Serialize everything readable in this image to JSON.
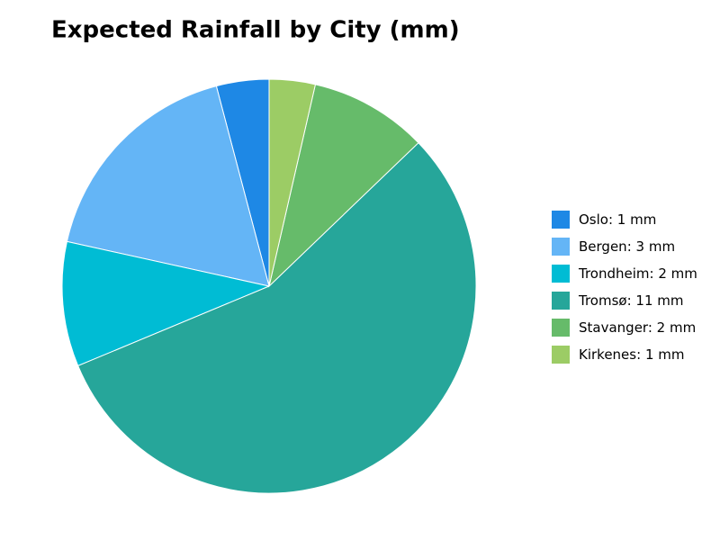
{
  "chart_data": {
    "type": "pie",
    "title": "Expected Rainfall by City (mm)",
    "categories": [
      "Oslo",
      "Bergen",
      "Trondheim",
      "Tromsø",
      "Stavanger",
      "Kirkenes"
    ],
    "values": [
      0.8,
      3.4,
      1.9,
      10.9,
      1.8,
      0.7
    ],
    "value_labels": [
      "1 mm",
      "3 mm",
      "2 mm",
      "11 mm",
      "2 mm",
      "1 mm"
    ],
    "colors": [
      "#1e88e5",
      "#64b5f6",
      "#00bcd4",
      "#26a69a",
      "#66bb6a",
      "#9ccc65"
    ],
    "direction": "counterclockwise",
    "legend": "right"
  }
}
